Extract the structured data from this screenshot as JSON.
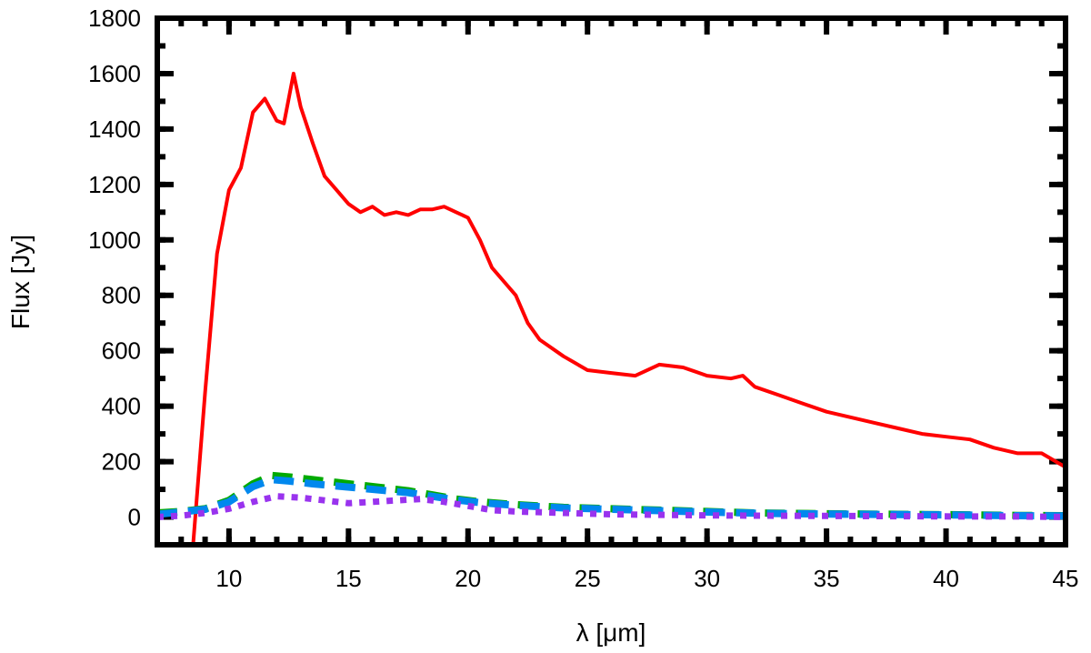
{
  "chart_data": {
    "type": "line",
    "title": "",
    "xlabel": "λ [μm]",
    "ylabel": "Flux [Jy]",
    "xlim": [
      7,
      45
    ],
    "ylim": [
      -100,
      1800
    ],
    "xticks": [
      10,
      15,
      20,
      25,
      30,
      35,
      40,
      45
    ],
    "yticks": [
      0,
      200,
      400,
      600,
      800,
      1000,
      1200,
      1400,
      1600,
      1800
    ],
    "grid": false,
    "legend": "none",
    "series": [
      {
        "color": "#ff0000",
        "style": "solid",
        "x": [
          8.5,
          9.0,
          9.5,
          10.0,
          10.5,
          11.0,
          11.5,
          12.0,
          12.3,
          12.7,
          13.0,
          13.5,
          14.0,
          14.5,
          15.0,
          15.5,
          16.0,
          16.5,
          17.0,
          17.5,
          18.0,
          18.5,
          19.0,
          19.5,
          20.0,
          20.5,
          21.0,
          21.5,
          22.0,
          22.5,
          23.0,
          24.0,
          25.0,
          26.0,
          27.0,
          28.0,
          29.0,
          30.0,
          31.0,
          31.5,
          32.0,
          33.0,
          34.0,
          35.0,
          36.0,
          37.0,
          38.0,
          39.0,
          40.0,
          41.0,
          42.0,
          43.0,
          44.0,
          45.0
        ],
        "y": [
          -100,
          450,
          950,
          1180,
          1260,
          1460,
          1510,
          1430,
          1420,
          1600,
          1480,
          1350,
          1230,
          1180,
          1130,
          1100,
          1120,
          1090,
          1100,
          1090,
          1110,
          1110,
          1120,
          1100,
          1080,
          1000,
          900,
          850,
          800,
          700,
          640,
          580,
          530,
          520,
          510,
          550,
          540,
          510,
          500,
          510,
          470,
          440,
          410,
          380,
          360,
          340,
          320,
          300,
          290,
          280,
          250,
          230,
          230,
          180
        ]
      },
      {
        "color": "#00aa00",
        "style": "dashed",
        "x": [
          7,
          8,
          9,
          10,
          11,
          11.8,
          12.5,
          13.5,
          14.5,
          15.5,
          16.5,
          17.5,
          18.5,
          19.5,
          20.5,
          22,
          24,
          26,
          28,
          30,
          32,
          35,
          38,
          41,
          43,
          45
        ],
        "y": [
          15,
          20,
          30,
          60,
          120,
          150,
          145,
          135,
          125,
          115,
          105,
          95,
          80,
          65,
          55,
          45,
          35,
          30,
          25,
          20,
          15,
          12,
          10,
          8,
          6,
          5
        ]
      },
      {
        "color": "#0088ee",
        "style": "dashed",
        "x": [
          7,
          8,
          9,
          10,
          11,
          11.8,
          12.5,
          13.5,
          14.5,
          15.5,
          16.5,
          17.5,
          18.5,
          19.5,
          20.5,
          22,
          24,
          26,
          28,
          30,
          32,
          35,
          38,
          41,
          43,
          45
        ],
        "y": [
          10,
          18,
          28,
          55,
          110,
          135,
          130,
          120,
          112,
          104,
          96,
          88,
          75,
          62,
          52,
          42,
          33,
          28,
          23,
          18,
          14,
          11,
          9,
          7,
          5,
          4
        ]
      },
      {
        "color": "#9933ee",
        "style": "dotted",
        "x": [
          7,
          8,
          9,
          10,
          11,
          12,
          13,
          14,
          15,
          16,
          17,
          18,
          19,
          20,
          21,
          22,
          24,
          26,
          28,
          30,
          32,
          35,
          38,
          41,
          43,
          45
        ],
        "y": [
          0,
          5,
          15,
          30,
          55,
          75,
          70,
          60,
          50,
          55,
          60,
          65,
          55,
          40,
          25,
          20,
          15,
          10,
          8,
          6,
          5,
          4,
          3,
          2,
          2,
          0
        ]
      }
    ]
  }
}
